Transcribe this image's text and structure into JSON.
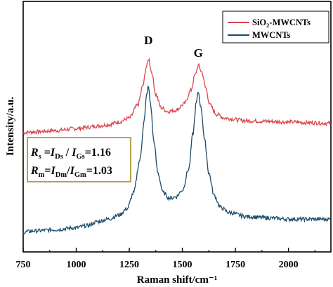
{
  "chart_data": {
    "type": "line",
    "xlabel": "Raman shift/cm⁻¹",
    "ylabel": "Intensity/a.u.",
    "xlim": [
      750,
      2200
    ],
    "xticks": [
      750,
      1000,
      1250,
      1500,
      1750,
      2000
    ],
    "xtick_labels": [
      "750",
      "1000",
      "1250",
      "1500",
      "1750",
      "2000"
    ],
    "y_tick_labels_shown": false,
    "grid": false,
    "legend": {
      "placement": "top-right",
      "entries": [
        {
          "label_parts": [
            "SiO",
            "2",
            "-MWCNTs"
          ],
          "series": 0
        },
        {
          "label_parts": [
            "MWCNTs"
          ],
          "series": 1
        }
      ]
    },
    "peak_labels": [
      {
        "text": "D",
        "x": 1340
      },
      {
        "text": "G",
        "x": 1575
      }
    ],
    "annotation": {
      "line1": {
        "R": "R",
        "R_sub": "s",
        "eq": " =",
        "I1": "I",
        "I1_sub": "Ds",
        "sep": " / ",
        "I2": "I",
        "I2_sub": "Gs",
        "value": "=1.16"
      },
      "line2": {
        "R": "R",
        "R_sub": "m",
        "eq": "=",
        "I1": "I",
        "I1_sub": "Dm",
        "sep": "/",
        "I2": "I",
        "I2_sub": "Gm",
        "value": "=1.03"
      }
    },
    "series": [
      {
        "color": "#d9474f",
        "baseline": 0.78,
        "points": [
          [
            750,
            0.76
          ],
          [
            800,
            0.765
          ],
          [
            900,
            0.775
          ],
          [
            1000,
            0.79
          ],
          [
            1050,
            0.8
          ],
          [
            1100,
            0.81
          ],
          [
            1150,
            0.82
          ],
          [
            1200,
            0.84
          ],
          [
            1250,
            0.87
          ],
          [
            1290,
            0.97
          ],
          [
            1315,
            1.12
          ],
          [
            1330,
            1.26
          ],
          [
            1342,
            1.32
          ],
          [
            1355,
            1.22
          ],
          [
            1375,
            1.05
          ],
          [
            1400,
            0.95
          ],
          [
            1430,
            0.92
          ],
          [
            1470,
            0.93
          ],
          [
            1510,
            0.98
          ],
          [
            1540,
            1.08
          ],
          [
            1560,
            1.2
          ],
          [
            1576,
            1.27
          ],
          [
            1592,
            1.22
          ],
          [
            1610,
            1.1
          ],
          [
            1630,
            0.97
          ],
          [
            1660,
            0.9
          ],
          [
            1700,
            0.87
          ],
          [
            1800,
            0.85
          ],
          [
            1900,
            0.845
          ],
          [
            2000,
            0.84
          ],
          [
            2100,
            0.835
          ],
          [
            2200,
            0.83
          ]
        ]
      },
      {
        "color": "#1c4b6b",
        "baseline": 0.0,
        "points": [
          [
            750,
            0.0
          ],
          [
            800,
            0.01
          ],
          [
            900,
            0.02
          ],
          [
            1000,
            0.035
          ],
          [
            1050,
            0.05
          ],
          [
            1100,
            0.08
          ],
          [
            1150,
            0.1
          ],
          [
            1200,
            0.13
          ],
          [
            1240,
            0.18
          ],
          [
            1270,
            0.3
          ],
          [
            1300,
            0.55
          ],
          [
            1320,
            0.85
          ],
          [
            1332,
            1.05
          ],
          [
            1340,
            1.11
          ],
          [
            1350,
            0.98
          ],
          [
            1365,
            0.7
          ],
          [
            1385,
            0.45
          ],
          [
            1410,
            0.3
          ],
          [
            1440,
            0.26
          ],
          [
            1470,
            0.27
          ],
          [
            1500,
            0.32
          ],
          [
            1530,
            0.48
          ],
          [
            1550,
            0.75
          ],
          [
            1565,
            0.98
          ],
          [
            1575,
            1.07
          ],
          [
            1588,
            0.95
          ],
          [
            1605,
            0.7
          ],
          [
            1625,
            0.45
          ],
          [
            1650,
            0.28
          ],
          [
            1680,
            0.19
          ],
          [
            1720,
            0.15
          ],
          [
            1800,
            0.12
          ],
          [
            1900,
            0.11
          ],
          [
            2000,
            0.1
          ],
          [
            2100,
            0.1
          ],
          [
            2200,
            0.1
          ]
        ]
      }
    ]
  }
}
